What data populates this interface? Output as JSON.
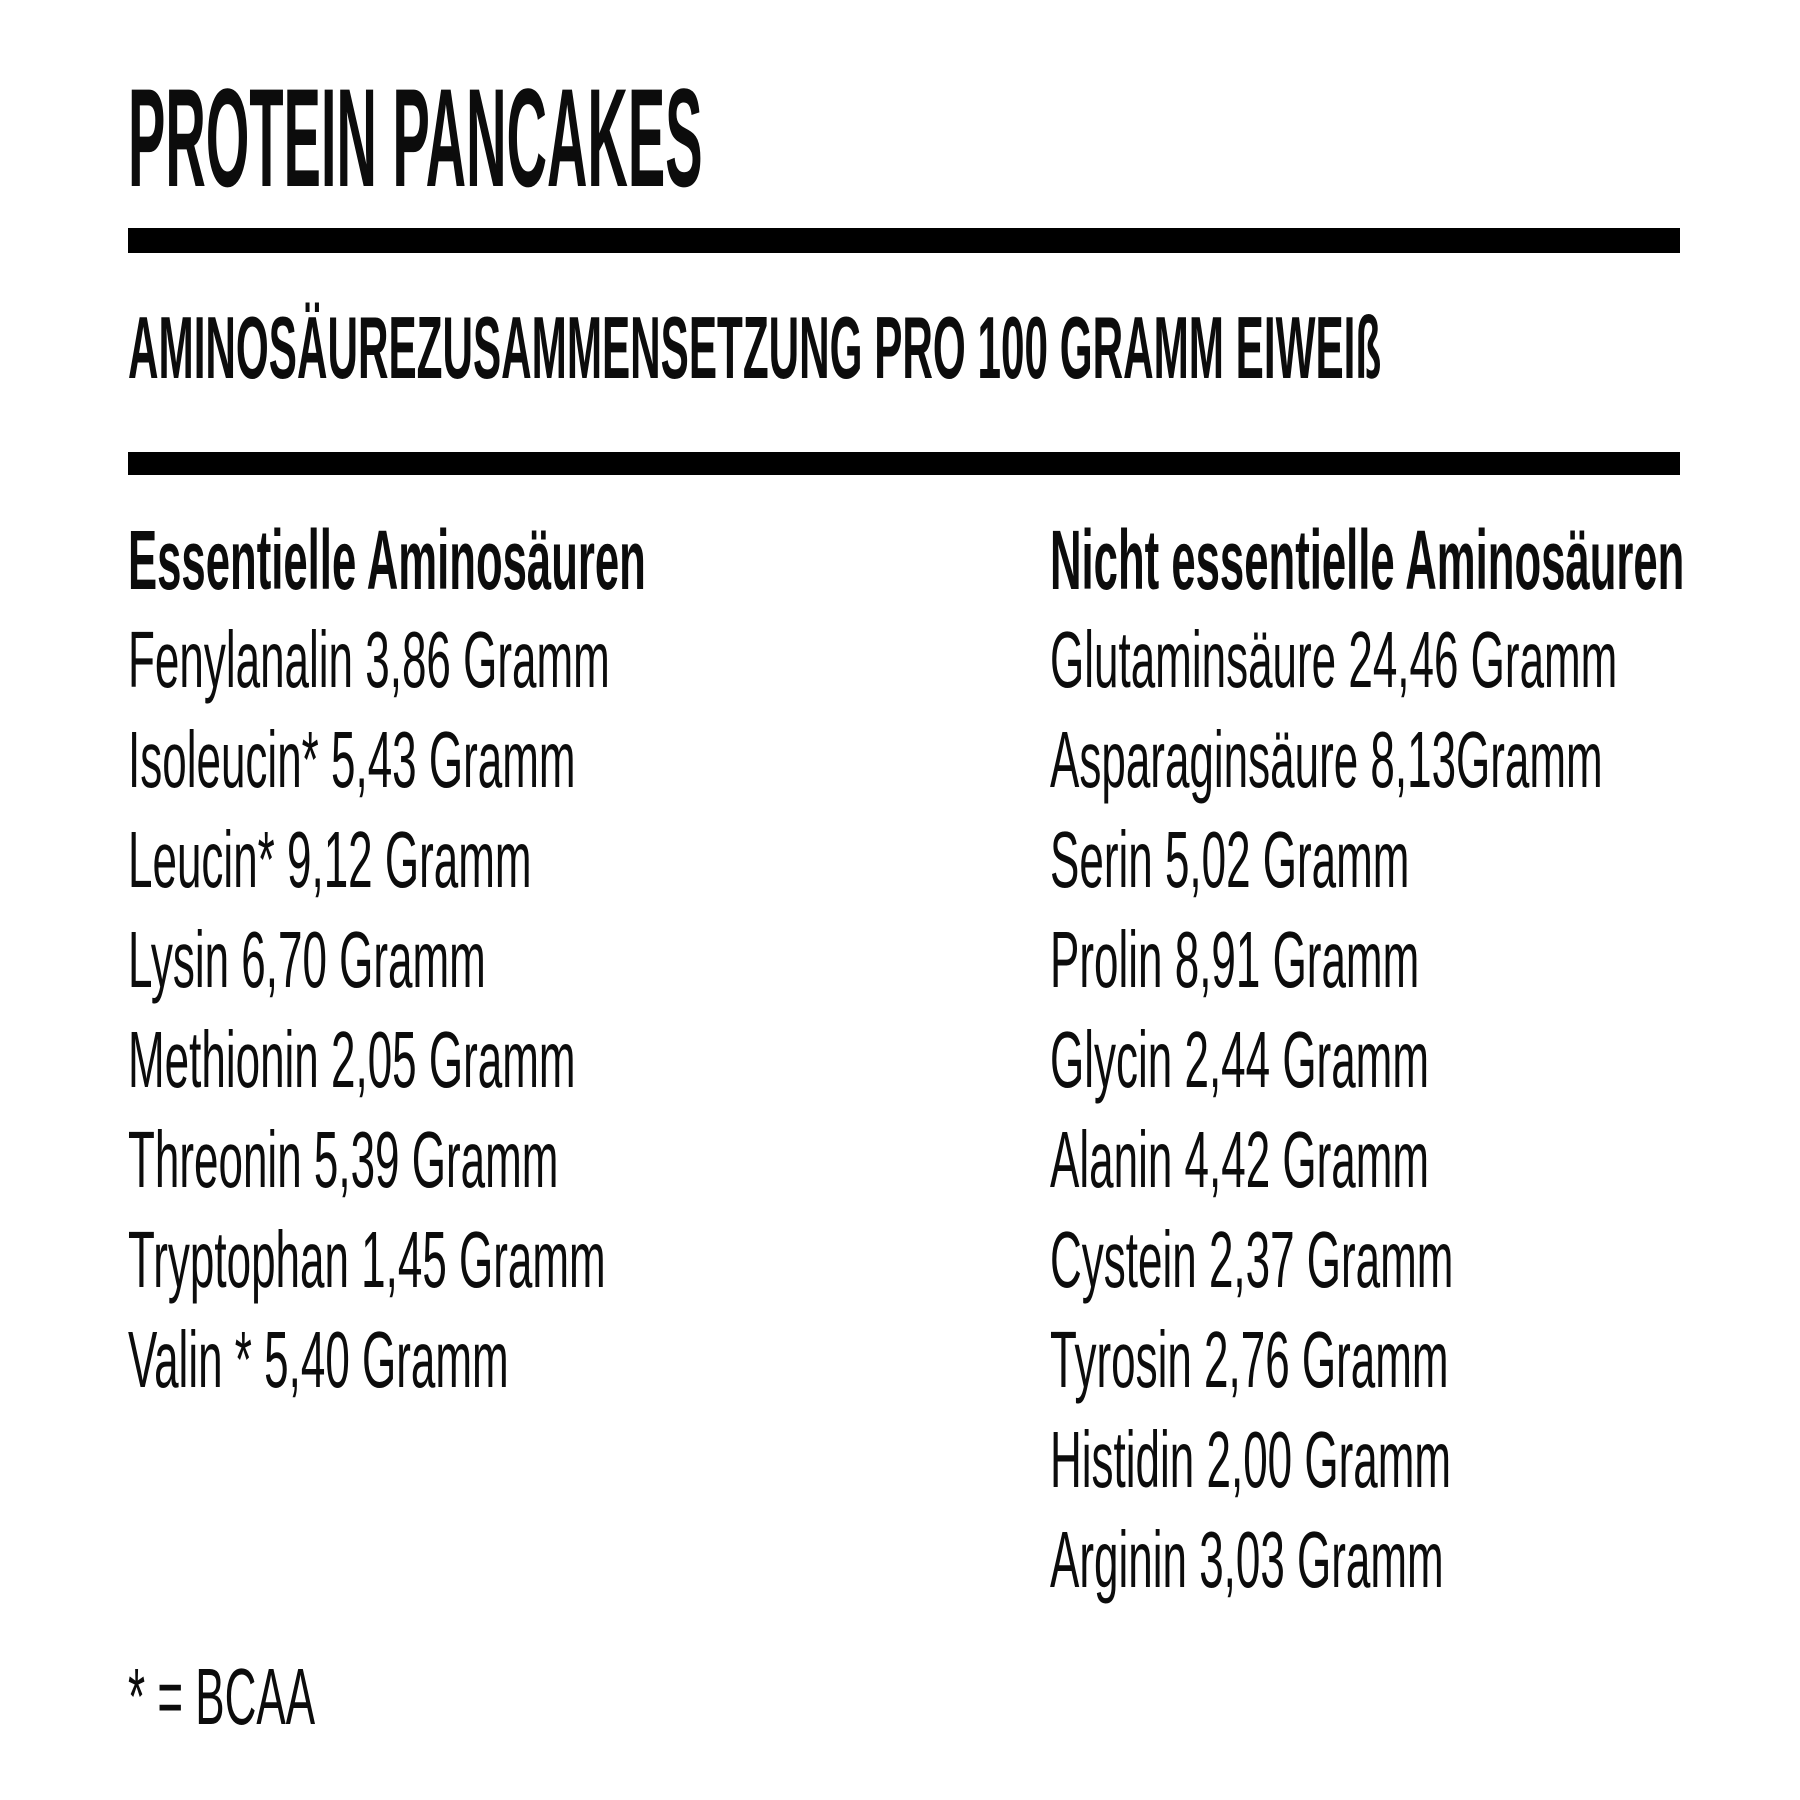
{
  "page": {
    "title": "PROTEIN PANCAKES",
    "subtitle": "AMINOSÄUREZUSAMMENSETZUNG PRO 100 GRAMM EIWEIß",
    "footnote": "* = BCAA"
  },
  "colors": {
    "text": "#0c0c0c",
    "bar": "#000000",
    "background": "#ffffff"
  },
  "columns": [
    {
      "header": "Essentielle Aminosäuren",
      "items": [
        "Fenylanalin 3,86 Gramm",
        "Isoleucin* 5,43 Gramm",
        "Leucin* 9,12 Gramm",
        "Lysin 6,70 Gramm",
        "Methionin 2,05 Gramm",
        "Threonin 5,39 Gramm",
        "Tryptophan 1,45 Gramm",
        "Valin * 5,40 Gramm"
      ]
    },
    {
      "header": "Nicht essentielle Aminosäuren",
      "items": [
        "Glutaminsäure 24,46 Gramm",
        "Asparaginsäure 8,13Gramm",
        "Serin 5,02 Gramm",
        "Prolin 8,91 Gramm",
        "Glycin 2,44 Gramm",
        "Alanin 4,42 Gramm",
        "Cystein 2,37 Gramm",
        "Tyrosin 2,76 Gramm",
        "Histidin 2,00 Gramm",
        "Arginin 3,03 Gramm"
      ]
    }
  ]
}
